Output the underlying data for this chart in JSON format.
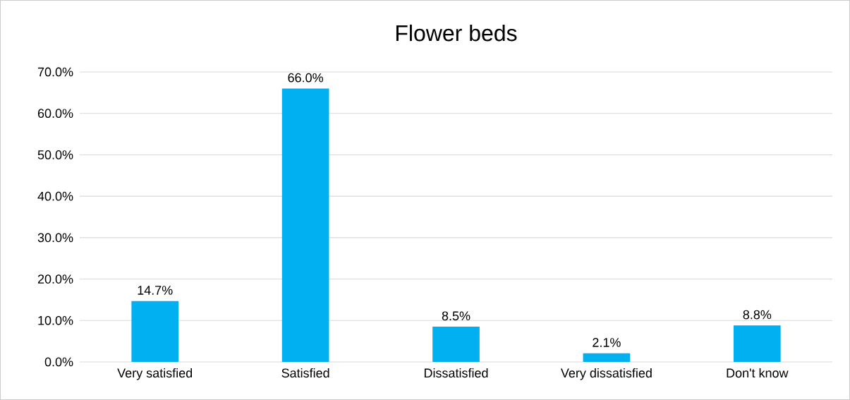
{
  "chart_data": {
    "type": "bar",
    "title": "Flower beds",
    "categories": [
      "Very satisfied",
      "Satisfied",
      "Dissatisfied",
      "Very dissatisfied",
      "Don't know"
    ],
    "values": [
      14.7,
      66.0,
      8.5,
      2.1,
      8.8
    ],
    "value_labels": [
      "14.7%",
      "66.0%",
      "8.5%",
      "2.1%",
      "8.8%"
    ],
    "color": "#00b0f0",
    "ylim": [
      0,
      70
    ],
    "yticks": [
      {
        "value": 0,
        "label": "0.0%"
      },
      {
        "value": 10,
        "label": "10.0%"
      },
      {
        "value": 20,
        "label": "20.0%"
      },
      {
        "value": 30,
        "label": "30.0%"
      },
      {
        "value": 40,
        "label": "40.0%"
      },
      {
        "value": 50,
        "label": "50.0%"
      },
      {
        "value": 60,
        "label": "60.0%"
      },
      {
        "value": 70,
        "label": "70.0%"
      }
    ],
    "grid": "y"
  }
}
